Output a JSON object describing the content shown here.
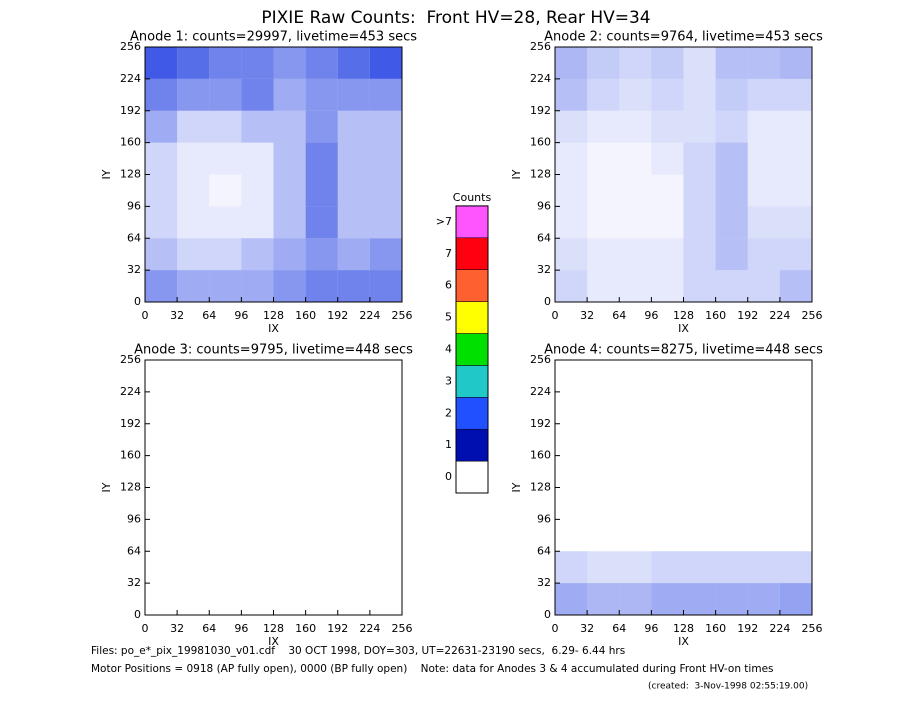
{
  "title": "PIXIE Raw Counts:  Front HV=28, Rear HV=34",
  "chart_data": [
    {
      "type": "heatmap",
      "title": "Anode 1: counts=29997, livetime=453 secs",
      "xlabel": "IX",
      "ylabel": "IY",
      "xlim": [
        0,
        256
      ],
      "ylim": [
        0,
        256
      ],
      "xticks": [
        0,
        32,
        64,
        96,
        128,
        160,
        192,
        224,
        256
      ],
      "yticks": [
        0,
        32,
        64,
        96,
        128,
        160,
        192,
        224,
        256
      ],
      "color": "#1030e0",
      "values": [
        [
          0.5,
          0.4,
          0.4,
          0.4,
          0.5,
          0.6,
          0.6,
          0.6
        ],
        [
          0.3,
          0.2,
          0.2,
          0.3,
          0.4,
          0.5,
          0.4,
          0.5
        ],
        [
          0.2,
          0.1,
          0.1,
          0.1,
          0.3,
          0.6,
          0.3,
          0.3
        ],
        [
          0.2,
          0.1,
          0.05,
          0.1,
          0.3,
          0.6,
          0.3,
          0.3
        ],
        [
          0.2,
          0.1,
          0.1,
          0.1,
          0.3,
          0.6,
          0.3,
          0.3
        ],
        [
          0.4,
          0.2,
          0.2,
          0.3,
          0.3,
          0.5,
          0.3,
          0.3
        ],
        [
          0.6,
          0.5,
          0.5,
          0.6,
          0.4,
          0.5,
          0.5,
          0.5
        ],
        [
          0.8,
          0.7,
          0.6,
          0.6,
          0.5,
          0.6,
          0.7,
          0.8
        ]
      ]
    },
    {
      "type": "heatmap",
      "title": "Anode 2: counts=9764, livetime=453 secs",
      "xlabel": "IX",
      "ylabel": "IY",
      "xlim": [
        0,
        256
      ],
      "ylim": [
        0,
        256
      ],
      "xticks": [
        0,
        32,
        64,
        96,
        128,
        160,
        192,
        224,
        256
      ],
      "yticks": [
        0,
        32,
        64,
        96,
        128,
        160,
        192,
        224,
        256
      ],
      "color": "#1030e0",
      "values": [
        [
          0.2,
          0.1,
          0.1,
          0.1,
          0.2,
          0.2,
          0.2,
          0.3
        ],
        [
          0.15,
          0.1,
          0.1,
          0.1,
          0.2,
          0.3,
          0.2,
          0.2
        ],
        [
          0.1,
          0.05,
          0.05,
          0.05,
          0.2,
          0.3,
          0.15,
          0.15
        ],
        [
          0.1,
          0.05,
          0.05,
          0.05,
          0.2,
          0.3,
          0.1,
          0.1
        ],
        [
          0.1,
          0.05,
          0.05,
          0.1,
          0.2,
          0.3,
          0.1,
          0.1
        ],
        [
          0.15,
          0.1,
          0.1,
          0.15,
          0.15,
          0.2,
          0.1,
          0.1
        ],
        [
          0.3,
          0.2,
          0.15,
          0.2,
          0.15,
          0.25,
          0.2,
          0.2
        ],
        [
          0.35,
          0.25,
          0.2,
          0.25,
          0.15,
          0.3,
          0.3,
          0.35
        ]
      ]
    },
    {
      "type": "heatmap",
      "title": "Anode 3: counts=9795, livetime=448 secs",
      "xlabel": "IX",
      "ylabel": "IY",
      "xlim": [
        0,
        256
      ],
      "ylim": [
        0,
        256
      ],
      "xticks": [
        0,
        32,
        64,
        96,
        128,
        160,
        192,
        224,
        256
      ],
      "yticks": [
        0,
        32,
        64,
        96,
        128,
        160,
        192,
        224,
        256
      ],
      "color": "#1030e0",
      "values": [
        [
          0,
          0,
          0,
          0,
          0,
          0,
          0,
          0
        ],
        [
          0,
          0,
          0,
          0,
          0,
          0,
          0,
          0
        ],
        [
          0,
          0,
          0,
          0,
          0,
          0,
          0,
          0
        ],
        [
          0,
          0,
          0,
          0,
          0,
          0,
          0,
          0
        ],
        [
          0,
          0,
          0,
          0,
          0,
          0,
          0,
          0
        ],
        [
          0,
          0,
          0,
          0,
          0,
          0,
          0,
          0
        ],
        [
          0,
          0,
          0,
          0,
          0,
          0,
          0,
          0
        ],
        [
          0,
          0,
          0,
          0,
          0,
          0,
          0,
          0
        ]
      ]
    },
    {
      "type": "heatmap",
      "title": "Anode 4: counts=8275, livetime=448 secs",
      "xlabel": "IX",
      "ylabel": "IY",
      "xlim": [
        0,
        256
      ],
      "ylim": [
        0,
        256
      ],
      "xticks": [
        0,
        32,
        64,
        96,
        128,
        160,
        192,
        224,
        256
      ],
      "yticks": [
        0,
        32,
        64,
        96,
        128,
        160,
        192,
        224,
        256
      ],
      "color": "#1030e0",
      "values": [
        [
          0.4,
          0.35,
          0.35,
          0.4,
          0.4,
          0.4,
          0.4,
          0.45
        ],
        [
          0.2,
          0.15,
          0.15,
          0.2,
          0.2,
          0.2,
          0.2,
          0.2
        ],
        [
          0,
          0,
          0,
          0,
          0,
          0,
          0,
          0
        ],
        [
          0,
          0,
          0,
          0,
          0,
          0,
          0,
          0
        ],
        [
          0,
          0,
          0,
          0,
          0,
          0,
          0,
          0
        ],
        [
          0,
          0,
          0,
          0,
          0,
          0,
          0,
          0
        ],
        [
          0,
          0,
          0,
          0,
          0,
          0,
          0,
          0
        ],
        [
          0,
          0,
          0,
          0,
          0,
          0,
          0,
          0
        ]
      ]
    }
  ],
  "colorbar": {
    "title": "Counts",
    "labels": [
      "0",
      "1",
      "2",
      "3",
      "4",
      "5",
      "6",
      "7",
      ">7"
    ],
    "colors": [
      "#ffffff",
      "#0010b0",
      "#2050ff",
      "#20c8c8",
      "#00e000",
      "#ffff00",
      "#ff6030",
      "#ff0010",
      "#ff55ff"
    ]
  },
  "footer": [
    "Files: po_e*_pix_19981030_v01.cdf    30 OCT 1998, DOY=303, UT=22631-23190 secs,  6.29- 6.44 hrs",
    "Motor Positions = 0918 (AP fully open), 0000 (BP fully open)    Note: data for Anodes 3 & 4 accumulated during Front HV-on times",
    "(created:  3-Nov-1998 02:55:19.00)"
  ]
}
